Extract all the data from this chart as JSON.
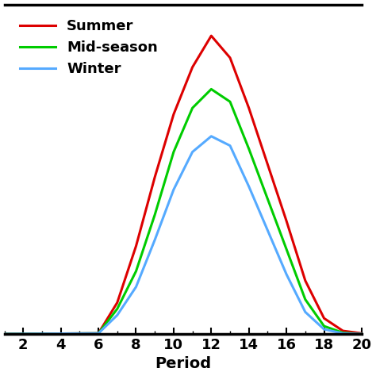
{
  "summer_x": [
    1,
    6,
    7,
    8,
    9,
    10,
    11,
    12,
    13,
    14,
    15,
    16,
    17,
    18,
    19,
    20
  ],
  "summer_y": [
    0,
    0.002,
    0.1,
    0.28,
    0.5,
    0.7,
    0.85,
    0.95,
    0.88,
    0.72,
    0.54,
    0.36,
    0.17,
    0.05,
    0.01,
    0.002
  ],
  "midseason_x": [
    1,
    6,
    7,
    8,
    9,
    10,
    11,
    12,
    13,
    14,
    15,
    16,
    17,
    18,
    19,
    20
  ],
  "midseason_y": [
    0,
    0.002,
    0.08,
    0.2,
    0.38,
    0.58,
    0.72,
    0.78,
    0.74,
    0.59,
    0.43,
    0.27,
    0.11,
    0.025,
    0.004,
    0.0
  ],
  "winter_x": [
    1,
    6,
    7,
    8,
    9,
    10,
    11,
    12,
    13,
    14,
    15,
    16,
    17,
    18,
    19,
    20
  ],
  "winter_y": [
    0,
    0.002,
    0.06,
    0.15,
    0.3,
    0.46,
    0.58,
    0.63,
    0.6,
    0.47,
    0.33,
    0.19,
    0.07,
    0.015,
    0.002,
    0.0
  ],
  "summer_color": "#dd0000",
  "midseason_color": "#00cc00",
  "winter_color": "#55aaff",
  "linewidth": 2.2,
  "xlabel": "Period",
  "xlabel_fontsize": 14,
  "xlabel_fontweight": "bold",
  "legend_labels": [
    "Summer",
    "Mid-season",
    "Winter"
  ],
  "legend_fontsize": 13,
  "legend_fontweight": "bold",
  "xlim": [
    1,
    20
  ],
  "ylim": [
    0,
    1.05
  ],
  "xticks": [
    2,
    4,
    6,
    8,
    10,
    12,
    14,
    16,
    18,
    20
  ],
  "minor_xticks": [
    1,
    2,
    3,
    4,
    5,
    6,
    7,
    8,
    9,
    10,
    11,
    12,
    13,
    14,
    15,
    16,
    17,
    18,
    19,
    20
  ],
  "tick_fontsize": 13,
  "background_color": "#ffffff",
  "figure_facecolor": "#ffffff"
}
